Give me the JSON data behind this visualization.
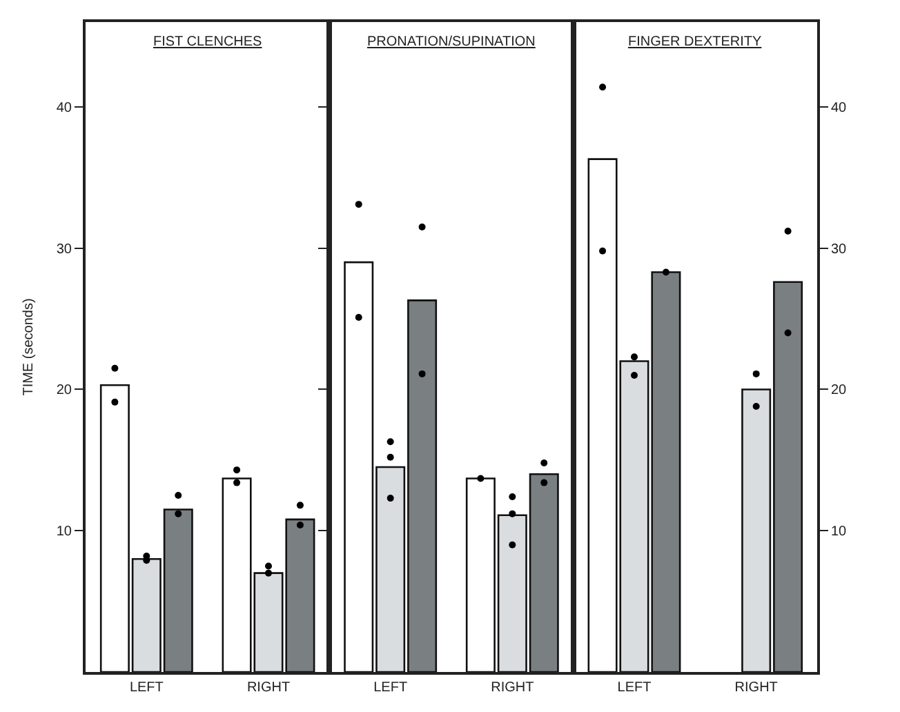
{
  "chart_data": [
    {
      "type": "bar",
      "title": "FIST CLENCHES",
      "ylabel": "TIME (seconds)",
      "categories": [
        "LEFT",
        "RIGHT"
      ],
      "ylim": [
        0,
        46
      ],
      "yticks": [
        10,
        20,
        30,
        40
      ],
      "grid": false,
      "marker": "circle",
      "series": [
        {
          "color": "#ffffff",
          "values": [
            20.3,
            13.7
          ]
        },
        {
          "color": "#d9dde0",
          "values": [
            8.0,
            7.0
          ]
        },
        {
          "color": "#7a7f82",
          "values": [
            11.5,
            10.8
          ]
        },
        {
          "type": "scatter",
          "color": "#000000",
          "values": [
            21.5,
            14.3
          ]
        },
        {
          "type": "scatter",
          "color": "#000000",
          "values": [
            8.2,
            7.5
          ]
        },
        {
          "type": "scatter",
          "color": "#000000",
          "values": [
            12.5,
            11.8
          ]
        },
        {
          "type": "scatter",
          "color": "#000000",
          "values": [
            19.1,
            13.4
          ]
        },
        {
          "type": "scatter",
          "color": "#000000",
          "values": [
            7.9,
            7.0
          ]
        },
        {
          "type": "scatter",
          "color": "#000000",
          "values": [
            11.2,
            10.4
          ]
        }
      ]
    },
    {
      "type": "bar",
      "title": "PRONATION/SUPINATION",
      "categories": [
        "LEFT",
        "RIGHT"
      ],
      "ylim": [
        0,
        46
      ],
      "yticks": [
        10,
        20,
        30,
        40
      ],
      "tick_labels": "x",
      "grid": false,
      "marker": "circle",
      "series": [
        {
          "color": "#ffffff",
          "values": [
            29.0,
            13.7
          ]
        },
        {
          "color": "#d9dde0",
          "values": [
            14.5,
            11.1
          ]
        },
        {
          "color": "#7a7f82",
          "values": [
            26.3,
            14.0
          ]
        },
        {
          "type": "scatter",
          "color": "#000000",
          "values": [
            33.1,
            13.7
          ]
        },
        {
          "type": "scatter",
          "color": "#000000",
          "values": [
            16.3,
            12.4
          ]
        },
        {
          "type": "scatter",
          "color": "#000000",
          "values": [
            31.5,
            14.8
          ]
        },
        {
          "type": "scatter",
          "color": "#000000",
          "values": [
            25.1,
            null
          ]
        },
        {
          "type": "scatter",
          "color": "#000000",
          "values": [
            15.2,
            11.2
          ]
        },
        {
          "type": "scatter",
          "color": "#000000",
          "values": [
            21.1,
            13.4
          ]
        },
        {
          "type": "scatter",
          "color": "#000000",
          "values": [
            null,
            null
          ]
        },
        {
          "type": "scatter",
          "color": "#000000",
          "values": [
            12.3,
            9.0
          ]
        }
      ]
    },
    {
      "type": "bar",
      "title": "FINGER DEXTERITY",
      "categories": [
        "LEFT",
        "RIGHT"
      ],
      "y2lim": [
        0,
        46
      ],
      "y2ticks": [
        10,
        20,
        30,
        40
      ],
      "grid": false,
      "marker": "circle",
      "series": [
        {
          "color": "#ffffff",
          "axis": "y2",
          "values": [
            36.3,
            null
          ]
        },
        {
          "color": "#d9dde0",
          "axis": "y2",
          "values": [
            22.0,
            20.0
          ]
        },
        {
          "color": "#7a7f82",
          "axis": "y2",
          "values": [
            28.3,
            27.6
          ]
        },
        {
          "type": "scatter",
          "color": "#000000",
          "axis": "y2",
          "values": [
            41.4,
            null
          ]
        },
        {
          "type": "scatter",
          "color": "#000000",
          "axis": "y2",
          "values": [
            22.3,
            21.1
          ]
        },
        {
          "type": "scatter",
          "color": "#000000",
          "axis": "y2",
          "values": [
            28.3,
            31.2
          ]
        },
        {
          "type": "scatter",
          "color": "#000000",
          "axis": "y2",
          "values": [
            29.8,
            null
          ]
        },
        {
          "type": "scatter",
          "color": "#000000",
          "axis": "y2",
          "values": [
            21.0,
            18.8
          ]
        },
        {
          "type": "scatter",
          "color": "#000000",
          "axis": "y2",
          "values": [
            null,
            24.0
          ]
        }
      ]
    }
  ]
}
